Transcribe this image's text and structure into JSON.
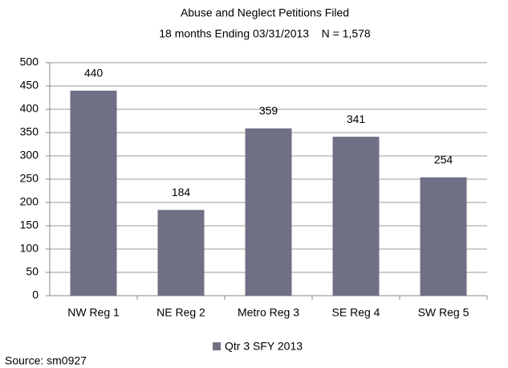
{
  "chart_data": {
    "type": "bar",
    "title": "Abuse and Neglect Petitions Filed",
    "subtitle": "18 months Ending 03/31/2013    N = 1,578",
    "categories": [
      "NW Reg 1",
      "NE Reg 2",
      "Metro Reg 3",
      "SE Reg 4",
      "SW Reg 5"
    ],
    "series": [
      {
        "name": "Qtr 3 SFY 2013",
        "color": "#6f6f85",
        "values": [
          440,
          184,
          359,
          341,
          254
        ]
      }
    ],
    "ylim": [
      0,
      500
    ],
    "yticks": [
      0,
      50,
      100,
      150,
      200,
      250,
      300,
      350,
      400,
      450,
      500
    ],
    "grid": true,
    "legend": "bottom",
    "source": "Source: sm0927"
  }
}
